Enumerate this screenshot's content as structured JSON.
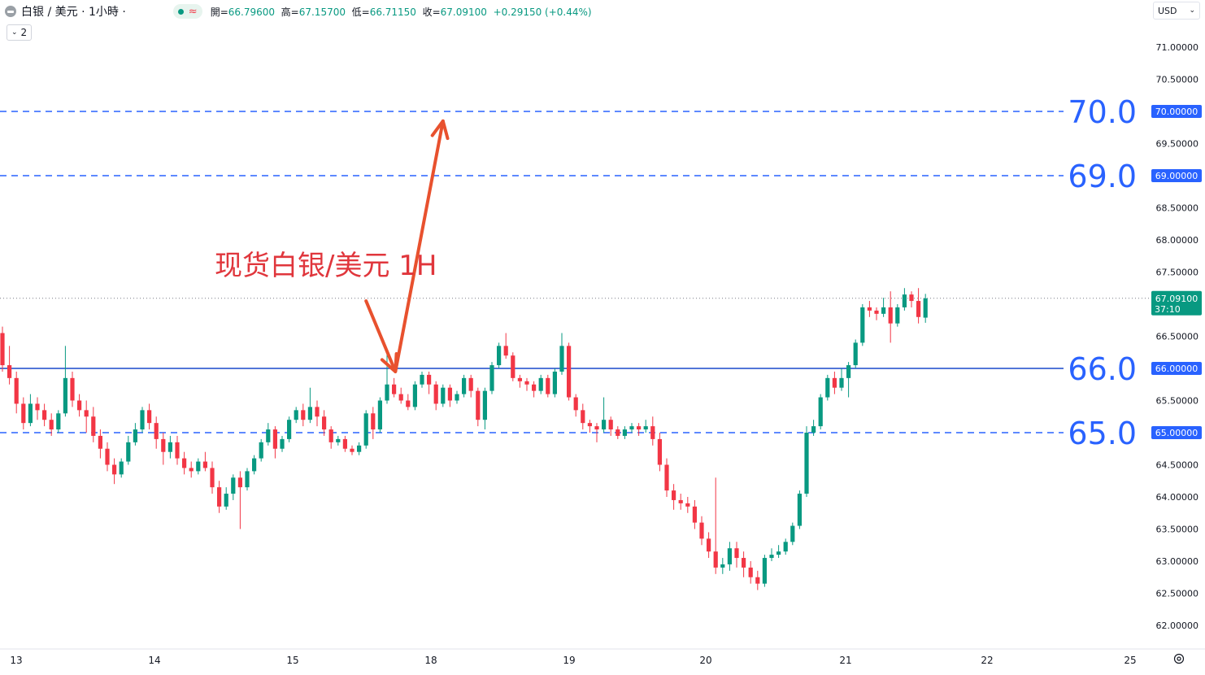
{
  "header": {
    "symbol": "白银 / 美元 · 1小時 ·",
    "open_label": "開=",
    "open": "66.79600",
    "high_label": "高=",
    "high": "67.15700",
    "low_label": "低=",
    "low": "66.71150",
    "close_label": "收=",
    "close": "67.09100",
    "change": "+0.29150 (+0.44%)",
    "indicator_count": "2",
    "currency": "USD",
    "status_wave": "≈"
  },
  "colors": {
    "up": "#089981",
    "down": "#f23645",
    "support": "#1848cc",
    "dashed": "#2962ff",
    "level_label": "#2962ff",
    "arrow": "#e8512e",
    "annotation": "#e0363c"
  },
  "chart_data": {
    "type": "candlestick",
    "annotation": "现货白银/美元 1H",
    "timeframe": "1H",
    "x_labels": [
      "13",
      "14",
      "15",
      "18",
      "19",
      "20",
      "21",
      "22",
      "25"
    ],
    "ylim": [
      61.85,
      71.35
    ],
    "y_ticks": [
      "71.00000",
      "70.50000",
      "70.00000",
      "69.50000",
      "69.00000",
      "68.50000",
      "68.00000",
      "67.50000",
      "67.00000",
      "66.50000",
      "66.00000",
      "65.50000",
      "65.00000",
      "64.50000",
      "64.00000",
      "63.50000",
      "63.00000",
      "62.50000",
      "62.00000"
    ],
    "last_price": "67.09100",
    "countdown": "37:10",
    "levels": [
      {
        "price": 70.0,
        "label": "70.0",
        "tag": "70.00000",
        "style": "dashed"
      },
      {
        "price": 69.0,
        "label": "69.0",
        "tag": "69.00000",
        "style": "dashed"
      },
      {
        "price": 66.0,
        "label": "66.0",
        "tag": "66.00000",
        "style": "solid"
      },
      {
        "price": 65.0,
        "label": "65.0",
        "tag": "65.00000",
        "style": "dashed"
      }
    ],
    "forecast_path": [
      {
        "x": 52.0,
        "y": 67.05
      },
      {
        "x": 56.2,
        "y": 65.95
      },
      {
        "x": 63.0,
        "y": 69.85
      }
    ],
    "candles": [
      [
        66.55,
        66.05,
        66.65,
        65.95
      ],
      [
        66.05,
        65.85,
        66.35,
        65.75
      ],
      [
        65.85,
        65.45,
        65.95,
        65.3
      ],
      [
        65.45,
        65.15,
        65.55,
        65.05
      ],
      [
        65.15,
        65.45,
        65.6,
        65.1
      ],
      [
        65.45,
        65.35,
        65.55,
        65.2
      ],
      [
        65.35,
        65.2,
        65.45,
        65.1
      ],
      [
        65.2,
        65.05,
        65.3,
        64.95
      ],
      [
        65.05,
        65.3,
        65.35,
        65.0
      ],
      [
        65.3,
        65.85,
        66.35,
        65.25
      ],
      [
        65.85,
        65.5,
        65.95,
        65.4
      ],
      [
        65.5,
        65.35,
        65.6,
        65.25
      ],
      [
        65.35,
        65.25,
        65.5,
        65.0
      ],
      [
        65.25,
        64.95,
        65.4,
        64.85
      ],
      [
        64.95,
        64.75,
        65.05,
        64.6
      ],
      [
        64.75,
        64.5,
        64.85,
        64.4
      ],
      [
        64.5,
        64.35,
        64.6,
        64.2
      ],
      [
        64.35,
        64.55,
        64.6,
        64.3
      ],
      [
        64.55,
        64.85,
        64.95,
        64.5
      ],
      [
        64.85,
        65.05,
        65.15,
        64.8
      ],
      [
        65.05,
        65.35,
        65.4,
        65.0
      ],
      [
        65.35,
        65.15,
        65.45,
        65.05
      ],
      [
        65.15,
        64.9,
        65.25,
        64.75
      ],
      [
        64.9,
        64.7,
        65.0,
        64.5
      ],
      [
        64.7,
        64.85,
        64.95,
        64.6
      ],
      [
        64.85,
        64.6,
        64.95,
        64.5
      ],
      [
        64.6,
        64.45,
        64.7,
        64.35
      ],
      [
        64.45,
        64.4,
        64.55,
        64.3
      ],
      [
        64.4,
        64.55,
        64.6,
        64.35
      ],
      [
        64.55,
        64.45,
        64.7,
        64.4
      ],
      [
        64.45,
        64.15,
        64.55,
        64.05
      ],
      [
        64.15,
        63.85,
        64.25,
        63.75
      ],
      [
        63.85,
        64.05,
        64.15,
        63.8
      ],
      [
        64.05,
        64.3,
        64.35,
        63.95
      ],
      [
        64.3,
        64.15,
        64.4,
        63.5
      ],
      [
        64.15,
        64.4,
        64.45,
        64.1
      ],
      [
        64.4,
        64.6,
        64.65,
        64.35
      ],
      [
        64.6,
        64.85,
        64.9,
        64.55
      ],
      [
        64.85,
        65.05,
        65.15,
        64.8
      ],
      [
        65.05,
        64.75,
        65.1,
        64.6
      ],
      [
        64.75,
        64.9,
        64.95,
        64.7
      ],
      [
        64.9,
        65.2,
        65.25,
        64.85
      ],
      [
        65.2,
        65.35,
        65.4,
        65.15
      ],
      [
        65.35,
        65.2,
        65.45,
        65.1
      ],
      [
        65.2,
        65.4,
        65.7,
        65.15
      ],
      [
        65.4,
        65.25,
        65.5,
        65.1
      ],
      [
        65.25,
        65.05,
        65.35,
        64.95
      ],
      [
        65.05,
        64.85,
        65.1,
        64.75
      ],
      [
        64.85,
        64.9,
        64.95,
        64.8
      ],
      [
        64.9,
        64.75,
        64.95,
        64.7
      ],
      [
        64.75,
        64.7,
        64.8,
        64.65
      ],
      [
        64.7,
        64.8,
        64.85,
        64.65
      ],
      [
        64.8,
        65.3,
        65.35,
        64.75
      ],
      [
        65.3,
        65.05,
        65.4,
        64.9
      ],
      [
        65.05,
        65.5,
        65.55,
        65.0
      ],
      [
        65.5,
        65.75,
        66.25,
        65.45
      ],
      [
        65.75,
        65.6,
        65.85,
        65.55
      ],
      [
        65.6,
        65.5,
        65.7,
        65.45
      ],
      [
        65.5,
        65.4,
        65.6,
        65.35
      ],
      [
        65.4,
        65.75,
        65.8,
        65.35
      ],
      [
        65.75,
        65.9,
        65.95,
        65.7
      ],
      [
        65.9,
        65.75,
        65.95,
        65.6
      ],
      [
        65.75,
        65.45,
        65.8,
        65.35
      ],
      [
        65.45,
        65.7,
        65.75,
        65.4
      ],
      [
        65.7,
        65.5,
        65.75,
        65.4
      ],
      [
        65.5,
        65.6,
        65.65,
        65.45
      ],
      [
        65.6,
        65.85,
        65.9,
        65.55
      ],
      [
        65.85,
        65.65,
        65.9,
        65.55
      ],
      [
        65.65,
        65.2,
        65.7,
        65.1
      ],
      [
        65.2,
        65.65,
        65.7,
        65.05
      ],
      [
        65.65,
        66.05,
        66.1,
        65.6
      ],
      [
        66.05,
        66.35,
        66.4,
        66.0
      ],
      [
        66.35,
        66.2,
        66.55,
        66.15
      ],
      [
        66.2,
        65.85,
        66.25,
        65.8
      ],
      [
        65.85,
        65.8,
        65.9,
        65.7
      ],
      [
        65.8,
        65.75,
        65.85,
        65.65
      ],
      [
        65.75,
        65.65,
        65.8,
        65.55
      ],
      [
        65.65,
        65.85,
        65.9,
        65.6
      ],
      [
        65.85,
        65.6,
        65.9,
        65.55
      ],
      [
        65.6,
        65.95,
        66.0,
        65.55
      ],
      [
        65.95,
        66.35,
        66.55,
        65.9
      ],
      [
        66.35,
        65.55,
        66.4,
        65.5
      ],
      [
        65.55,
        65.35,
        65.6,
        65.25
      ],
      [
        65.35,
        65.15,
        65.45,
        65.05
      ],
      [
        65.15,
        65.1,
        65.2,
        65.0
      ],
      [
        65.1,
        65.05,
        65.15,
        64.85
      ],
      [
        65.05,
        65.2,
        65.55,
        65.0
      ],
      [
        65.2,
        65.05,
        65.25,
        64.95
      ],
      [
        65.05,
        64.95,
        65.1,
        64.9
      ],
      [
        64.95,
        65.05,
        65.1,
        64.9
      ],
      [
        65.05,
        65.1,
        65.15,
        65.0
      ],
      [
        65.1,
        65.05,
        65.15,
        64.95
      ],
      [
        65.05,
        65.1,
        65.2,
        65.0
      ],
      [
        65.1,
        64.9,
        65.25,
        64.8
      ],
      [
        64.9,
        64.5,
        65.0,
        64.4
      ],
      [
        64.5,
        64.1,
        64.6,
        64.0
      ],
      [
        64.1,
        63.95,
        64.2,
        63.8
      ],
      [
        63.95,
        63.9,
        64.05,
        63.8
      ],
      [
        63.9,
        63.85,
        64.0,
        63.75
      ],
      [
        63.85,
        63.6,
        63.95,
        63.5
      ],
      [
        63.6,
        63.35,
        63.7,
        63.25
      ],
      [
        63.35,
        63.15,
        63.45,
        63.05
      ],
      [
        63.15,
        62.9,
        64.3,
        62.8
      ],
      [
        62.9,
        62.95,
        63.05,
        62.8
      ],
      [
        62.95,
        63.2,
        63.3,
        62.85
      ],
      [
        63.2,
        63.05,
        63.3,
        62.9
      ],
      [
        63.05,
        62.9,
        63.15,
        62.75
      ],
      [
        62.9,
        62.75,
        63.0,
        62.65
      ],
      [
        62.75,
        62.65,
        62.85,
        62.55
      ],
      [
        62.65,
        63.05,
        63.1,
        62.6
      ],
      [
        63.05,
        63.1,
        63.2,
        63.0
      ],
      [
        63.1,
        63.15,
        63.25,
        63.05
      ],
      [
        63.15,
        63.3,
        63.35,
        63.1
      ],
      [
        63.3,
        63.55,
        63.6,
        63.25
      ],
      [
        63.55,
        64.05,
        64.1,
        63.5
      ],
      [
        64.05,
        65.0,
        65.1,
        64.0
      ],
      [
        65.0,
        65.1,
        65.2,
        64.95
      ],
      [
        65.1,
        65.55,
        65.6,
        65.05
      ],
      [
        65.55,
        65.85,
        65.9,
        65.5
      ],
      [
        65.85,
        65.7,
        65.95,
        65.6
      ],
      [
        65.7,
        65.85,
        66.0,
        65.65
      ],
      [
        65.85,
        66.05,
        66.1,
        65.55
      ],
      [
        66.05,
        66.4,
        66.45,
        66.0
      ],
      [
        66.4,
        66.95,
        67.0,
        66.35
      ],
      [
        66.95,
        66.9,
        67.05,
        66.8
      ],
      [
        66.9,
        66.85,
        66.95,
        66.75
      ],
      [
        66.85,
        66.95,
        67.1,
        66.8
      ],
      [
        66.95,
        66.7,
        67.2,
        66.4
      ],
      [
        66.7,
        66.95,
        67.0,
        66.65
      ],
      [
        66.95,
        67.15,
        67.25,
        66.9
      ],
      [
        67.15,
        67.05,
        67.2,
        66.95
      ],
      [
        67.05,
        66.8,
        67.25,
        66.7
      ],
      [
        66.79,
        67.09,
        67.16,
        66.71
      ]
    ]
  }
}
